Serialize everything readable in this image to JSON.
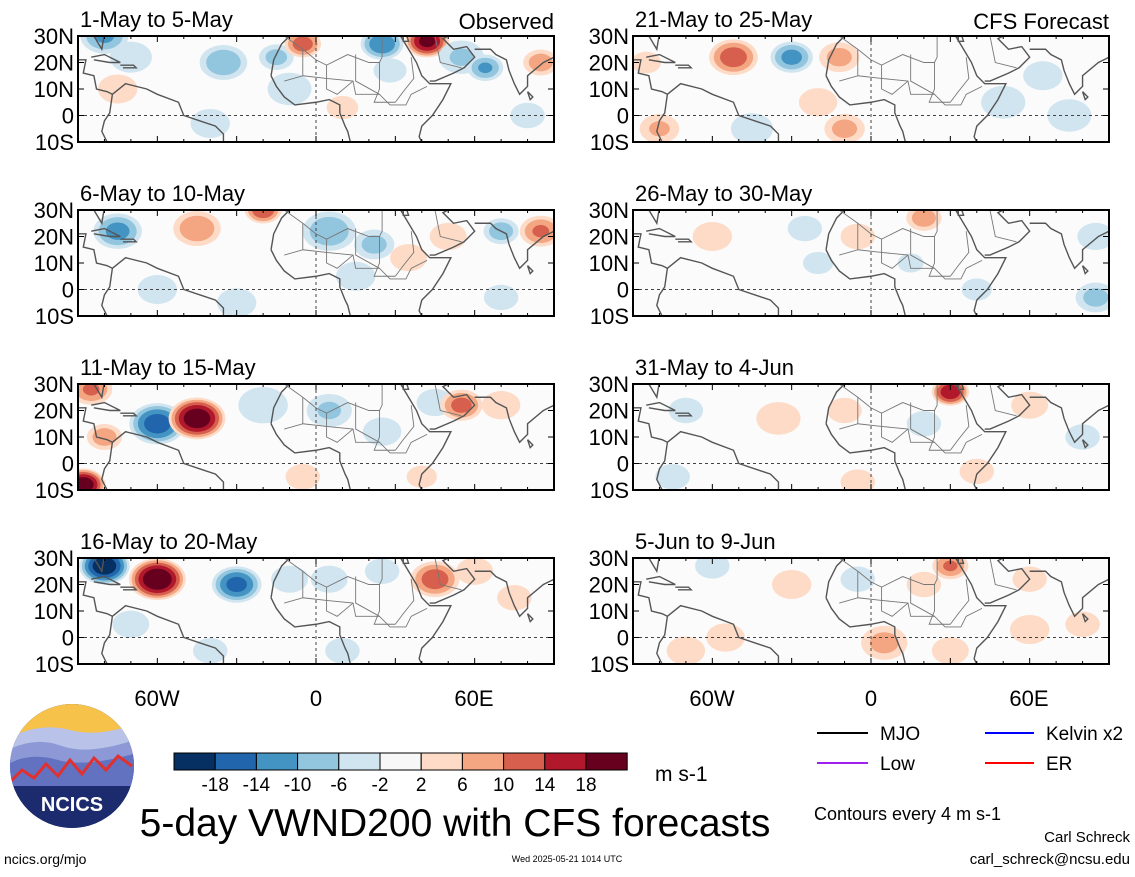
{
  "chart_data": {
    "type": "heatmap",
    "title": "5-day VWND200 with CFS forecasts",
    "units_label": "m s-1",
    "contour_note": "Contours every 4 m s-1",
    "author": "Carl Schreck",
    "email": "carl_schreck@ncsu.edu",
    "source": "ncics.org/mjo",
    "timestamp": "Wed 2025-05-21 1014 UTC",
    "logo_text": "NCICS",
    "x_tick_labels": [
      "60W",
      "0",
      "60E"
    ],
    "x_ticks": [
      -60,
      0,
      60
    ],
    "y_tick_labels": [
      "30N",
      "20N",
      "10N",
      "0",
      "10S"
    ],
    "y_ticks": [
      30,
      20,
      10,
      0,
      -10
    ],
    "xlim": [
      -90,
      90
    ],
    "ylim": [
      -10,
      30
    ],
    "colorbar": {
      "tick_labels": [
        "-18",
        "-14",
        "-10",
        "-6",
        "-2",
        "2",
        "6",
        "10",
        "14",
        "18"
      ],
      "colors": [
        "#053061",
        "#2166ac",
        "#4393c3",
        "#92c5de",
        "#d1e5f0",
        "#f7f7f7",
        "#fddbc7",
        "#f4a582",
        "#d6604d",
        "#b2182b",
        "#67001f"
      ]
    },
    "legend": [
      {
        "name": "MJO",
        "color": "#000000"
      },
      {
        "name": "Kelvin x2",
        "color": "#0000ff"
      },
      {
        "name": "Low",
        "color": "#a020f0"
      },
      {
        "name": "ER",
        "color": "#ff0000"
      }
    ],
    "panels": [
      {
        "label": "1-May to 5-May",
        "tag": "Observed",
        "col": 0,
        "row": 0,
        "blobs": [
          [
            -80,
            30,
            -10,
            8
          ],
          [
            -70,
            22,
            -4,
            8
          ],
          [
            -75,
            10,
            3,
            8
          ],
          [
            -35,
            20,
            -9,
            8
          ],
          [
            -15,
            22,
            -7,
            6
          ],
          [
            -10,
            10,
            -5,
            8
          ],
          [
            -5,
            27,
            12,
            6
          ],
          [
            10,
            3,
            4,
            6
          ],
          [
            25,
            27,
            -13,
            7
          ],
          [
            28,
            17,
            -5,
            6
          ],
          [
            42,
            28,
            19,
            7
          ],
          [
            55,
            22,
            -6,
            8
          ],
          [
            64,
            18,
            -10,
            6
          ],
          [
            85,
            20,
            8,
            6
          ],
          [
            80,
            0,
            -3,
            7
          ],
          [
            -40,
            -3,
            -3,
            8
          ]
        ]
      },
      {
        "label": "21-May to 25-May",
        "tag": "CFS Forecast",
        "col": 1,
        "row": 0,
        "blobs": [
          [
            -85,
            20,
            3,
            6
          ],
          [
            -52,
            22,
            12,
            8
          ],
          [
            -30,
            22,
            -11,
            7
          ],
          [
            -12,
            22,
            7,
            7
          ],
          [
            -20,
            5,
            5,
            7
          ],
          [
            -80,
            -5,
            6,
            7
          ],
          [
            -45,
            -5,
            -4,
            8
          ],
          [
            -10,
            -5,
            7,
            7
          ],
          [
            50,
            5,
            -3,
            9
          ],
          [
            65,
            15,
            -3,
            8
          ],
          [
            75,
            0,
            -5,
            8
          ]
        ]
      },
      {
        "label": "6-May to 10-May",
        "tag": "",
        "col": 0,
        "row": 1,
        "blobs": [
          [
            -75,
            22,
            -11,
            8
          ],
          [
            -45,
            23,
            9,
            8
          ],
          [
            -20,
            30,
            13,
            6
          ],
          [
            5,
            22,
            -9,
            9
          ],
          [
            22,
            17,
            -7,
            7
          ],
          [
            15,
            5,
            -3,
            8
          ],
          [
            35,
            12,
            4,
            7
          ],
          [
            50,
            20,
            4,
            7
          ],
          [
            70,
            22,
            -8,
            6
          ],
          [
            85,
            22,
            10,
            7
          ],
          [
            70,
            -3,
            -3,
            7
          ],
          [
            -60,
            0,
            -3,
            8
          ],
          [
            -30,
            -5,
            -3,
            8
          ]
        ]
      },
      {
        "label": "26-May to 30-May",
        "tag": "",
        "col": 1,
        "row": 1,
        "blobs": [
          [
            -60,
            20,
            3,
            8
          ],
          [
            -25,
            23,
            -3,
            7
          ],
          [
            -20,
            10,
            -2,
            7
          ],
          [
            -5,
            20,
            3,
            7
          ],
          [
            20,
            27,
            8,
            6
          ],
          [
            15,
            10,
            -2,
            6
          ],
          [
            85,
            20,
            -4,
            7
          ],
          [
            85,
            -3,
            -7,
            7
          ],
          [
            40,
            0,
            -2,
            7
          ]
        ]
      },
      {
        "label": "11-May to 15-May",
        "tag": "",
        "col": 0,
        "row": 2,
        "blobs": [
          [
            -85,
            28,
            10,
            7
          ],
          [
            -88,
            -8,
            21,
            7
          ],
          [
            -80,
            10,
            8,
            6
          ],
          [
            -60,
            15,
            -16,
            9
          ],
          [
            -45,
            17,
            21,
            9
          ],
          [
            -20,
            22,
            -5,
            9
          ],
          [
            5,
            20,
            -6,
            8
          ],
          [
            25,
            12,
            -5,
            7
          ],
          [
            45,
            23,
            -4,
            7
          ],
          [
            55,
            22,
            11,
            7
          ],
          [
            70,
            22,
            5,
            7
          ],
          [
            -5,
            -5,
            3,
            7
          ],
          [
            40,
            -5,
            2,
            7
          ]
        ]
      },
      {
        "label": "31-May to 4-Jun",
        "tag": "",
        "col": 1,
        "row": 2,
        "blobs": [
          [
            -70,
            20,
            -3,
            7
          ],
          [
            -35,
            17,
            3,
            9
          ],
          [
            -10,
            20,
            3,
            7
          ],
          [
            20,
            15,
            -3,
            7
          ],
          [
            30,
            27,
            17,
            6
          ],
          [
            60,
            22,
            4,
            7
          ],
          [
            -75,
            -5,
            -3,
            7
          ],
          [
            -5,
            -7,
            3,
            7
          ],
          [
            40,
            -3,
            3,
            7
          ],
          [
            80,
            10,
            -3,
            7
          ]
        ]
      },
      {
        "label": "16-May to 20-May",
        "tag": "",
        "col": 0,
        "row": 3,
        "blobs": [
          [
            -80,
            27,
            -21,
            8
          ],
          [
            -60,
            22,
            22,
            9
          ],
          [
            -30,
            20,
            -15,
            8
          ],
          [
            -10,
            22,
            -4,
            7
          ],
          [
            5,
            22,
            -4,
            7
          ],
          [
            25,
            25,
            -3,
            7
          ],
          [
            45,
            22,
            12,
            8
          ],
          [
            60,
            25,
            4,
            7
          ],
          [
            75,
            15,
            3,
            7
          ],
          [
            -70,
            5,
            -4,
            7
          ],
          [
            -40,
            -5,
            -3,
            7
          ],
          [
            10,
            -5,
            -3,
            7
          ]
        ]
      },
      {
        "label": "5-Jun to 9-Jun",
        "tag": "",
        "col": 1,
        "row": 3,
        "blobs": [
          [
            -60,
            27,
            -3,
            7
          ],
          [
            -30,
            20,
            3,
            8
          ],
          [
            -5,
            22,
            -3,
            7
          ],
          [
            20,
            20,
            3,
            7
          ],
          [
            30,
            27,
            10,
            6
          ],
          [
            60,
            22,
            3,
            7
          ],
          [
            -70,
            -5,
            5,
            7
          ],
          [
            -55,
            0,
            5,
            7
          ],
          [
            5,
            -2,
            7,
            8
          ],
          [
            30,
            -5,
            4,
            7
          ],
          [
            60,
            3,
            3,
            8
          ],
          [
            80,
            5,
            3,
            7
          ]
        ]
      }
    ]
  }
}
